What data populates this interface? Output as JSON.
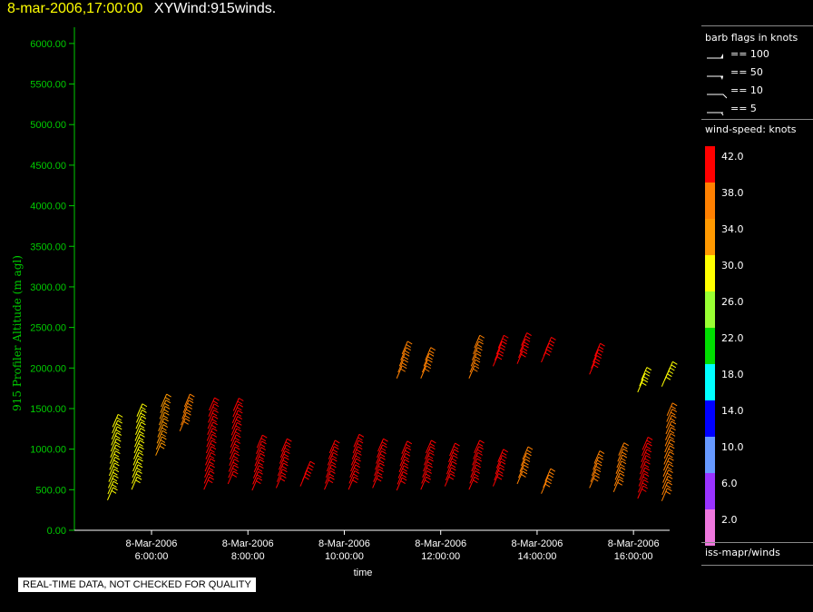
{
  "header": {
    "timestamp": "8-mar-2006,17:00:00",
    "name": "XYWind:915winds."
  },
  "disclaimer": "REAL-TIME DATA, NOT CHECKED FOR QUALITY",
  "legend": {
    "barb_title": "barb flags in knots",
    "barbs": [
      {
        "label": "== 100",
        "knots": 100
      },
      {
        "label": "== 50",
        "knots": 50
      },
      {
        "label": "== 10",
        "knots": 10
      },
      {
        "label": "== 5",
        "knots": 5
      }
    ],
    "speed_title": "wind-speed: knots",
    "scale": [
      {
        "label": "42.0",
        "color": "#ff0000"
      },
      {
        "label": "38.0",
        "color": "#ff8000"
      },
      {
        "label": "34.0",
        "color": "#ff9900"
      },
      {
        "label": "30.0",
        "color": "#ffff00"
      },
      {
        "label": "26.0",
        "color": "#99ff33"
      },
      {
        "label": "22.0",
        "color": "#00dd00"
      },
      {
        "label": "18.0",
        "color": "#00ffff"
      },
      {
        "label": "14.0",
        "color": "#0000ff"
      },
      {
        "label": "10.0",
        "color": "#6699ff"
      },
      {
        "label": "6.0",
        "color": "#9933ff"
      },
      {
        "label": "2.0",
        "color": "#ee77dd"
      }
    ],
    "source": "iss-mapr/winds"
  },
  "chart_data": {
    "type": "scatter",
    "title": "XYWind:915winds.",
    "xlabel": "time",
    "ylabel": "915 Profiler Altitude (m agl)",
    "ylim": [
      0,
      6200
    ],
    "xlim": [
      4.4,
      16.75
    ],
    "yticks": [
      "0.00",
      "500.00",
      "1000.00",
      "1500.00",
      "2000.00",
      "2500.00",
      "3000.00",
      "3500.00",
      "4000.00",
      "4500.00",
      "5000.00",
      "5500.00",
      "6000.00"
    ],
    "xticks": [
      {
        "date": "8-Mar-2006",
        "time": "6:00:00",
        "hour": 6
      },
      {
        "date": "8-Mar-2006",
        "time": "8:00:00",
        "hour": 8
      },
      {
        "date": "8-Mar-2006",
        "time": "10:00:00",
        "hour": 10
      },
      {
        "date": "8-Mar-2006",
        "time": "12:00:00",
        "hour": 12
      },
      {
        "date": "8-Mar-2006",
        "time": "14:00:00",
        "hour": 14
      },
      {
        "date": "8-Mar-2006",
        "time": "16:00:00",
        "hour": 16
      }
    ],
    "series": [
      {
        "hour": 5.2,
        "low": 450,
        "high": 1400,
        "speed": 30
      },
      {
        "hour": 5.7,
        "low": 580,
        "high": 1500,
        "speed": 30
      },
      {
        "hour": 6.2,
        "low": 1000,
        "high": 1600,
        "speed": 34
      },
      {
        "hour": 6.7,
        "low": 1300,
        "high": 1650,
        "speed": 36
      },
      {
        "hour": 7.2,
        "low": 580,
        "high": 1600,
        "speed": 42
      },
      {
        "hour": 7.7,
        "low": 650,
        "high": 1550,
        "speed": 42
      },
      {
        "hour": 8.2,
        "low": 570,
        "high": 1150,
        "speed": 42
      },
      {
        "hour": 8.7,
        "low": 600,
        "high": 1050,
        "speed": 42
      },
      {
        "hour": 9.2,
        "low": 620,
        "high": 800,
        "speed": 42
      },
      {
        "hour": 9.7,
        "low": 580,
        "high": 1050,
        "speed": 40
      },
      {
        "hour": 10.2,
        "low": 580,
        "high": 1120,
        "speed": 40
      },
      {
        "hour": 10.7,
        "low": 600,
        "high": 1060,
        "speed": 40
      },
      {
        "hour": 11.2,
        "low": 570,
        "high": 1050,
        "speed": 42
      },
      {
        "hour": 11.2,
        "low": 1950,
        "high": 2250,
        "speed": 38
      },
      {
        "hour": 11.7,
        "low": 580,
        "high": 1060,
        "speed": 42
      },
      {
        "hour": 11.7,
        "low": 1950,
        "high": 2220,
        "speed": 38
      },
      {
        "hour": 12.2,
        "low": 620,
        "high": 1050,
        "speed": 42
      },
      {
        "hour": 12.7,
        "low": 580,
        "high": 1050,
        "speed": 40
      },
      {
        "hour": 12.7,
        "low": 1950,
        "high": 2330,
        "speed": 38
      },
      {
        "hour": 13.2,
        "low": 620,
        "high": 960,
        "speed": 40
      },
      {
        "hour": 13.2,
        "low": 2100,
        "high": 2330,
        "speed": 42
      },
      {
        "hour": 13.7,
        "low": 650,
        "high": 950,
        "speed": 38
      },
      {
        "hour": 13.7,
        "low": 2130,
        "high": 2420,
        "speed": 42
      },
      {
        "hour": 14.2,
        "low": 530,
        "high": 740,
        "speed": 38
      },
      {
        "hour": 14.2,
        "low": 2150,
        "high": 2330,
        "speed": 42
      },
      {
        "hour": 15.2,
        "low": 600,
        "high": 940,
        "speed": 38
      },
      {
        "hour": 15.2,
        "low": 2000,
        "high": 2230,
        "speed": 42
      },
      {
        "hour": 15.7,
        "low": 550,
        "high": 1040,
        "speed": 38
      },
      {
        "hour": 16.2,
        "low": 470,
        "high": 1140,
        "speed": 42
      },
      {
        "hour": 16.2,
        "low": 1780,
        "high": 2000,
        "speed": 30
      },
      {
        "hour": 16.7,
        "low": 440,
        "high": 1520,
        "speed": 36
      },
      {
        "hour": 16.7,
        "low": 1850,
        "high": 2000,
        "speed": 30
      }
    ]
  }
}
